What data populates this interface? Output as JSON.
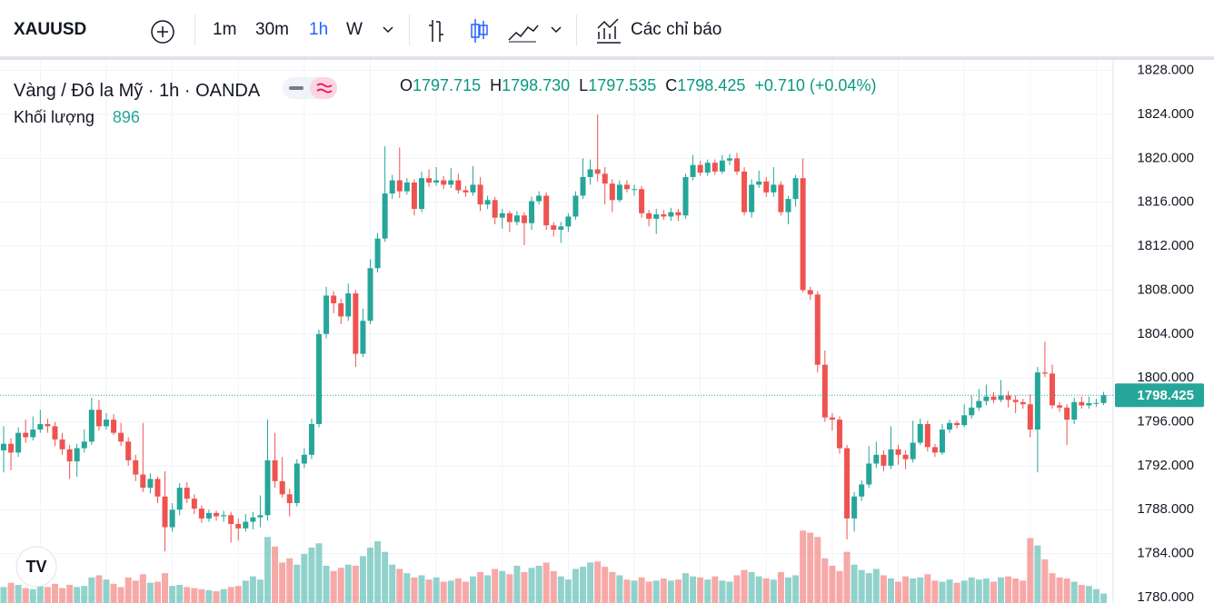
{
  "toolbar": {
    "symbol": "XAUUSD",
    "intervals": [
      "1m",
      "30m",
      "1h",
      "W"
    ],
    "indicators": "Các chỉ báo"
  },
  "chart_data": {
    "type": "candlestick",
    "title": "Vàng / Đô la Mỹ · 1h · OANDA",
    "ohlc_labels": [
      {
        "label": "O",
        "value": "1797.715"
      },
      {
        "label": "H",
        "value": "1798.730"
      },
      {
        "label": "L",
        "value": "1797.535"
      },
      {
        "label": "C",
        "value": "1798.425"
      }
    ],
    "change": "+0.710 (+0.04%)",
    "volume_label": "Khối lượng",
    "up_color": "#26a69a",
    "down_color": "#ef5350",
    "ylim": [
      1779.5,
      1828.8
    ],
    "yticks": [
      {
        "value": 1780,
        "label": "1780.000"
      },
      {
        "value": 1784,
        "label": "1784.000"
      },
      {
        "value": 1788,
        "label": "1788.000"
      },
      {
        "value": 1792,
        "label": "1792.000"
      },
      {
        "value": 1796,
        "label": "1796.000"
      },
      {
        "value": 1800,
        "label": "1800.000"
      },
      {
        "value": 1804,
        "label": "1804.000"
      },
      {
        "value": 1808,
        "label": "1808.000"
      },
      {
        "value": 1812,
        "label": "1812.000"
      },
      {
        "value": 1816,
        "label": "1816.000"
      },
      {
        "value": 1820,
        "label": "1820.000"
      },
      {
        "value": 1824,
        "label": "1824.000"
      },
      {
        "value": 1828,
        "label": "1828.000"
      }
    ],
    "grid": true,
    "vlim": [
      0,
      7500
    ],
    "ohlc": [
      [
        1793.4,
        1795.6,
        1791.4,
        1794.0
      ],
      [
        1794.0,
        1794.5,
        1791.6,
        1793.2
      ],
      [
        1793.2,
        1795.5,
        1792.8,
        1795.0
      ],
      [
        1795.0,
        1796.2,
        1794.1,
        1794.6
      ],
      [
        1794.6,
        1796.5,
        1794.3,
        1795.3
      ],
      [
        1795.3,
        1797.1,
        1795.0,
        1795.8
      ],
      [
        1795.8,
        1796.3,
        1795.0,
        1795.6
      ],
      [
        1795.6,
        1796.0,
        1793.8,
        1794.4
      ],
      [
        1794.4,
        1795.0,
        1793.0,
        1793.5
      ],
      [
        1793.5,
        1793.9,
        1790.8,
        1792.4
      ],
      [
        1792.4,
        1794.0,
        1791.0,
        1793.6
      ],
      [
        1793.6,
        1795.3,
        1793.2,
        1794.2
      ],
      [
        1794.2,
        1798.2,
        1793.9,
        1797.1
      ],
      [
        1797.1,
        1798.0,
        1795.2,
        1795.6
      ],
      [
        1795.6,
        1796.8,
        1795.3,
        1796.2
      ],
      [
        1796.2,
        1796.7,
        1794.8,
        1795.0
      ],
      [
        1795.0,
        1795.9,
        1793.8,
        1794.2
      ],
      [
        1794.2,
        1794.6,
        1792.0,
        1792.5
      ],
      [
        1792.5,
        1793.0,
        1790.6,
        1791.2
      ],
      [
        1791.2,
        1795.9,
        1789.6,
        1790.0
      ],
      [
        1790.0,
        1791.3,
        1789.5,
        1790.8
      ],
      [
        1790.8,
        1791.0,
        1788.6,
        1789.2
      ],
      [
        1789.2,
        1791.5,
        1784.2,
        1786.4
      ],
      [
        1786.4,
        1788.6,
        1786.0,
        1788.0
      ],
      [
        1788.0,
        1790.4,
        1787.5,
        1790.0
      ],
      [
        1790.0,
        1790.5,
        1788.6,
        1789.0
      ],
      [
        1789.0,
        1789.4,
        1787.6,
        1788.1
      ],
      [
        1788.1,
        1788.4,
        1786.8,
        1787.2
      ],
      [
        1787.2,
        1788.0,
        1786.9,
        1787.7
      ],
      [
        1787.7,
        1787.9,
        1787.0,
        1787.4
      ],
      [
        1787.4,
        1787.9,
        1786.9,
        1787.5
      ],
      [
        1787.5,
        1787.8,
        1785.0,
        1786.7
      ],
      [
        1786.7,
        1787.2,
        1785.2,
        1786.3
      ],
      [
        1786.3,
        1787.6,
        1786.0,
        1786.9
      ],
      [
        1786.9,
        1787.8,
        1786.2,
        1787.3
      ],
      [
        1787.3,
        1789.3,
        1786.4,
        1787.5
      ],
      [
        1787.5,
        1796.2,
        1787.0,
        1792.5
      ],
      [
        1792.5,
        1795.0,
        1790.0,
        1790.6
      ],
      [
        1790.6,
        1792.8,
        1789.1,
        1789.4
      ],
      [
        1789.4,
        1789.9,
        1787.4,
        1788.6
      ],
      [
        1788.6,
        1792.6,
        1788.3,
        1792.2
      ],
      [
        1792.2,
        1793.6,
        1791.8,
        1793.0
      ],
      [
        1793.0,
        1796.3,
        1792.6,
        1795.8
      ],
      [
        1795.8,
        1804.4,
        1795.5,
        1804.0
      ],
      [
        1804.0,
        1808.3,
        1803.6,
        1807.5
      ],
      [
        1807.5,
        1807.9,
        1805.9,
        1806.8
      ],
      [
        1806.8,
        1807.2,
        1804.9,
        1805.6
      ],
      [
        1805.6,
        1808.6,
        1805.2,
        1807.7
      ],
      [
        1807.7,
        1808.0,
        1801.0,
        1802.2
      ],
      [
        1802.2,
        1806.3,
        1801.9,
        1805.2
      ],
      [
        1805.2,
        1810.8,
        1804.9,
        1810.0
      ],
      [
        1810.0,
        1813.2,
        1809.6,
        1812.7
      ],
      [
        1812.7,
        1821.1,
        1812.4,
        1816.8
      ],
      [
        1816.8,
        1818.5,
        1816.3,
        1818.0
      ],
      [
        1818.0,
        1821.0,
        1816.4,
        1817.0
      ],
      [
        1817.0,
        1818.2,
        1816.7,
        1817.8
      ],
      [
        1817.8,
        1818.1,
        1814.8,
        1815.4
      ],
      [
        1815.4,
        1818.8,
        1815.1,
        1818.2
      ],
      [
        1818.2,
        1819.0,
        1817.4,
        1817.8
      ],
      [
        1817.8,
        1819.2,
        1817.5,
        1818.0
      ],
      [
        1818.0,
        1818.4,
        1817.2,
        1817.6
      ],
      [
        1817.6,
        1819.1,
        1817.3,
        1818.0
      ],
      [
        1818.0,
        1818.6,
        1816.8,
        1817.1
      ],
      [
        1817.1,
        1817.5,
        1816.5,
        1816.9
      ],
      [
        1816.9,
        1819.3,
        1816.6,
        1817.6
      ],
      [
        1817.6,
        1818.3,
        1815.2,
        1815.8
      ],
      [
        1815.8,
        1816.6,
        1815.4,
        1816.2
      ],
      [
        1816.2,
        1816.5,
        1814.0,
        1814.6
      ],
      [
        1814.6,
        1815.4,
        1813.6,
        1815.0
      ],
      [
        1815.0,
        1815.2,
        1813.3,
        1814.2
      ],
      [
        1814.2,
        1815.2,
        1813.9,
        1814.8
      ],
      [
        1814.8,
        1815.1,
        1812.1,
        1814.1
      ],
      [
        1814.1,
        1816.5,
        1813.5,
        1816.1
      ],
      [
        1816.1,
        1817.0,
        1815.8,
        1816.6
      ],
      [
        1816.6,
        1816.9,
        1813.5,
        1813.9
      ],
      [
        1813.9,
        1814.2,
        1812.9,
        1813.5
      ],
      [
        1813.5,
        1814.2,
        1812.3,
        1813.8
      ],
      [
        1813.8,
        1815.0,
        1813.3,
        1814.7
      ],
      [
        1814.7,
        1817.0,
        1814.4,
        1816.6
      ],
      [
        1816.6,
        1820.0,
        1816.3,
        1818.3
      ],
      [
        1818.3,
        1819.9,
        1817.6,
        1819.0
      ],
      [
        1819.0,
        1824.0,
        1817.9,
        1818.6
      ],
      [
        1818.6,
        1819.2,
        1815.8,
        1817.7
      ],
      [
        1817.7,
        1818.1,
        1815.1,
        1816.2
      ],
      [
        1816.2,
        1818.0,
        1816.0,
        1817.6
      ],
      [
        1817.6,
        1818.0,
        1816.9,
        1817.2
      ],
      [
        1817.2,
        1817.6,
        1816.6,
        1817.2
      ],
      [
        1817.2,
        1817.5,
        1814.6,
        1815.0
      ],
      [
        1815.0,
        1815.3,
        1813.8,
        1814.5
      ],
      [
        1814.5,
        1815.4,
        1813.1,
        1814.9
      ],
      [
        1814.9,
        1815.3,
        1814.4,
        1814.7
      ],
      [
        1814.7,
        1815.5,
        1814.3,
        1815.1
      ],
      [
        1815.1,
        1815.4,
        1814.3,
        1814.8
      ],
      [
        1814.8,
        1818.6,
        1814.5,
        1818.3
      ],
      [
        1818.3,
        1820.3,
        1818.0,
        1819.4
      ],
      [
        1819.4,
        1819.8,
        1818.4,
        1818.7
      ],
      [
        1818.7,
        1819.9,
        1818.4,
        1819.6
      ],
      [
        1819.6,
        1819.9,
        1818.5,
        1818.8
      ],
      [
        1818.8,
        1820.3,
        1818.6,
        1819.8
      ],
      [
        1819.8,
        1820.4,
        1819.4,
        1820.0
      ],
      [
        1820.0,
        1820.5,
        1818.5,
        1818.8
      ],
      [
        1818.8,
        1819.2,
        1814.8,
        1815.1
      ],
      [
        1815.1,
        1818.1,
        1814.6,
        1817.6
      ],
      [
        1817.6,
        1818.9,
        1817.3,
        1817.9
      ],
      [
        1817.9,
        1818.3,
        1816.5,
        1816.9
      ],
      [
        1816.9,
        1819.2,
        1816.5,
        1817.6
      ],
      [
        1817.6,
        1817.9,
        1814.8,
        1815.1
      ],
      [
        1815.1,
        1816.6,
        1814.0,
        1816.3
      ],
      [
        1816.3,
        1818.5,
        1815.6,
        1818.2
      ],
      [
        1818.2,
        1820.0,
        1807.8,
        1808.0
      ],
      [
        1808.0,
        1808.3,
        1807.1,
        1807.6
      ],
      [
        1807.6,
        1807.9,
        1800.5,
        1801.2
      ],
      [
        1801.2,
        1802.5,
        1796.0,
        1796.4
      ],
      [
        1796.4,
        1796.8,
        1795.2,
        1796.2
      ],
      [
        1796.2,
        1796.5,
        1793.1,
        1793.6
      ],
      [
        1793.6,
        1793.9,
        1785.3,
        1787.2
      ],
      [
        1787.2,
        1789.6,
        1786.0,
        1789.2
      ],
      [
        1789.2,
        1790.7,
        1788.8,
        1790.3
      ],
      [
        1790.3,
        1793.8,
        1790.0,
        1792.2
      ],
      [
        1792.2,
        1794.2,
        1791.8,
        1793.0
      ],
      [
        1793.0,
        1793.4,
        1791.5,
        1792.0
      ],
      [
        1792.0,
        1795.6,
        1791.7,
        1793.5
      ],
      [
        1793.5,
        1793.9,
        1792.1,
        1793.0
      ],
      [
        1793.0,
        1793.4,
        1791.7,
        1792.6
      ],
      [
        1792.6,
        1796.1,
        1792.3,
        1794.1
      ],
      [
        1794.1,
        1796.3,
        1793.9,
        1795.8
      ],
      [
        1795.8,
        1796.1,
        1793.3,
        1793.7
      ],
      [
        1793.7,
        1794.0,
        1792.8,
        1793.2
      ],
      [
        1793.2,
        1795.8,
        1793.0,
        1795.3
      ],
      [
        1795.3,
        1796.2,
        1795.0,
        1795.9
      ],
      [
        1795.9,
        1796.1,
        1795.4,
        1795.7
      ],
      [
        1795.7,
        1797.6,
        1795.5,
        1796.6
      ],
      [
        1796.6,
        1798.4,
        1796.3,
        1797.3
      ],
      [
        1797.3,
        1799.0,
        1797.0,
        1797.9
      ],
      [
        1797.9,
        1799.4,
        1797.5,
        1798.3
      ],
      [
        1798.3,
        1798.7,
        1797.7,
        1798.0
      ],
      [
        1798.0,
        1799.8,
        1797.8,
        1798.4
      ],
      [
        1798.4,
        1798.8,
        1797.3,
        1798.0
      ],
      [
        1798.0,
        1798.4,
        1796.8,
        1797.8
      ],
      [
        1797.8,
        1798.1,
        1797.2,
        1797.6
      ],
      [
        1797.6,
        1798.5,
        1794.6,
        1795.3
      ],
      [
        1795.3,
        1801.0,
        1791.4,
        1800.5
      ],
      [
        1800.5,
        1803.3,
        1800.1,
        1800.4
      ],
      [
        1800.4,
        1801.2,
        1797.2,
        1797.5
      ],
      [
        1797.5,
        1797.8,
        1796.9,
        1797.3
      ],
      [
        1797.3,
        1797.6,
        1793.9,
        1796.2
      ],
      [
        1796.2,
        1798.2,
        1795.8,
        1797.8
      ],
      [
        1797.8,
        1798.3,
        1797.2,
        1797.5
      ],
      [
        1797.5,
        1798.3,
        1797.2,
        1797.7
      ],
      [
        1797.7,
        1798.1,
        1797.4,
        1797.715
      ],
      [
        1797.715,
        1798.73,
        1797.535,
        1798.425
      ]
    ],
    "volume": [
      1500,
      1900,
      1700,
      1400,
      1300,
      1600,
      1500,
      1800,
      1400,
      1700,
      1500,
      1600,
      2400,
      2600,
      2200,
      1800,
      1500,
      2400,
      2100,
      2700,
      1900,
      2000,
      2800,
      1600,
      1700,
      1500,
      1400,
      1300,
      1200,
      1100,
      1300,
      1500,
      1600,
      2100,
      2500,
      2200,
      6200,
      5300,
      3800,
      4200,
      3600,
      4600,
      5200,
      5600,
      3500,
      3000,
      3300,
      3600,
      3500,
      4400,
      5200,
      5800,
      4800,
      3600,
      3200,
      2800,
      2400,
      2600,
      2200,
      2400,
      2000,
      2100,
      2300,
      2000,
      2500,
      2900,
      2600,
      3200,
      3000,
      2700,
      3500,
      2900,
      3300,
      3500,
      3800,
      3000,
      2500,
      2200,
      3200,
      3400,
      3800,
      3900,
      3400,
      2900,
      2600,
      2200,
      2100,
      2400,
      2000,
      2100,
      2300,
      2100,
      2200,
      2800,
      2500,
      2400,
      2200,
      2500,
      2100,
      2000,
      2600,
      3100,
      2900,
      2500,
      2300,
      2200,
      2900,
      2400,
      2600,
      6800,
      6600,
      6200,
      4200,
      3500,
      3000,
      4800,
      3600,
      3100,
      2800,
      3200,
      2600,
      2300,
      2000,
      2500,
      2300,
      2400,
      2700,
      2100,
      2000,
      2200,
      1900,
      2100,
      2400,
      2200,
      2300,
      2000,
      2400,
      2500,
      2300,
      2100,
      6100,
      5400,
      4100,
      2800,
      2400,
      2300,
      2000,
      1700,
      1600,
      1300,
      896
    ]
  }
}
